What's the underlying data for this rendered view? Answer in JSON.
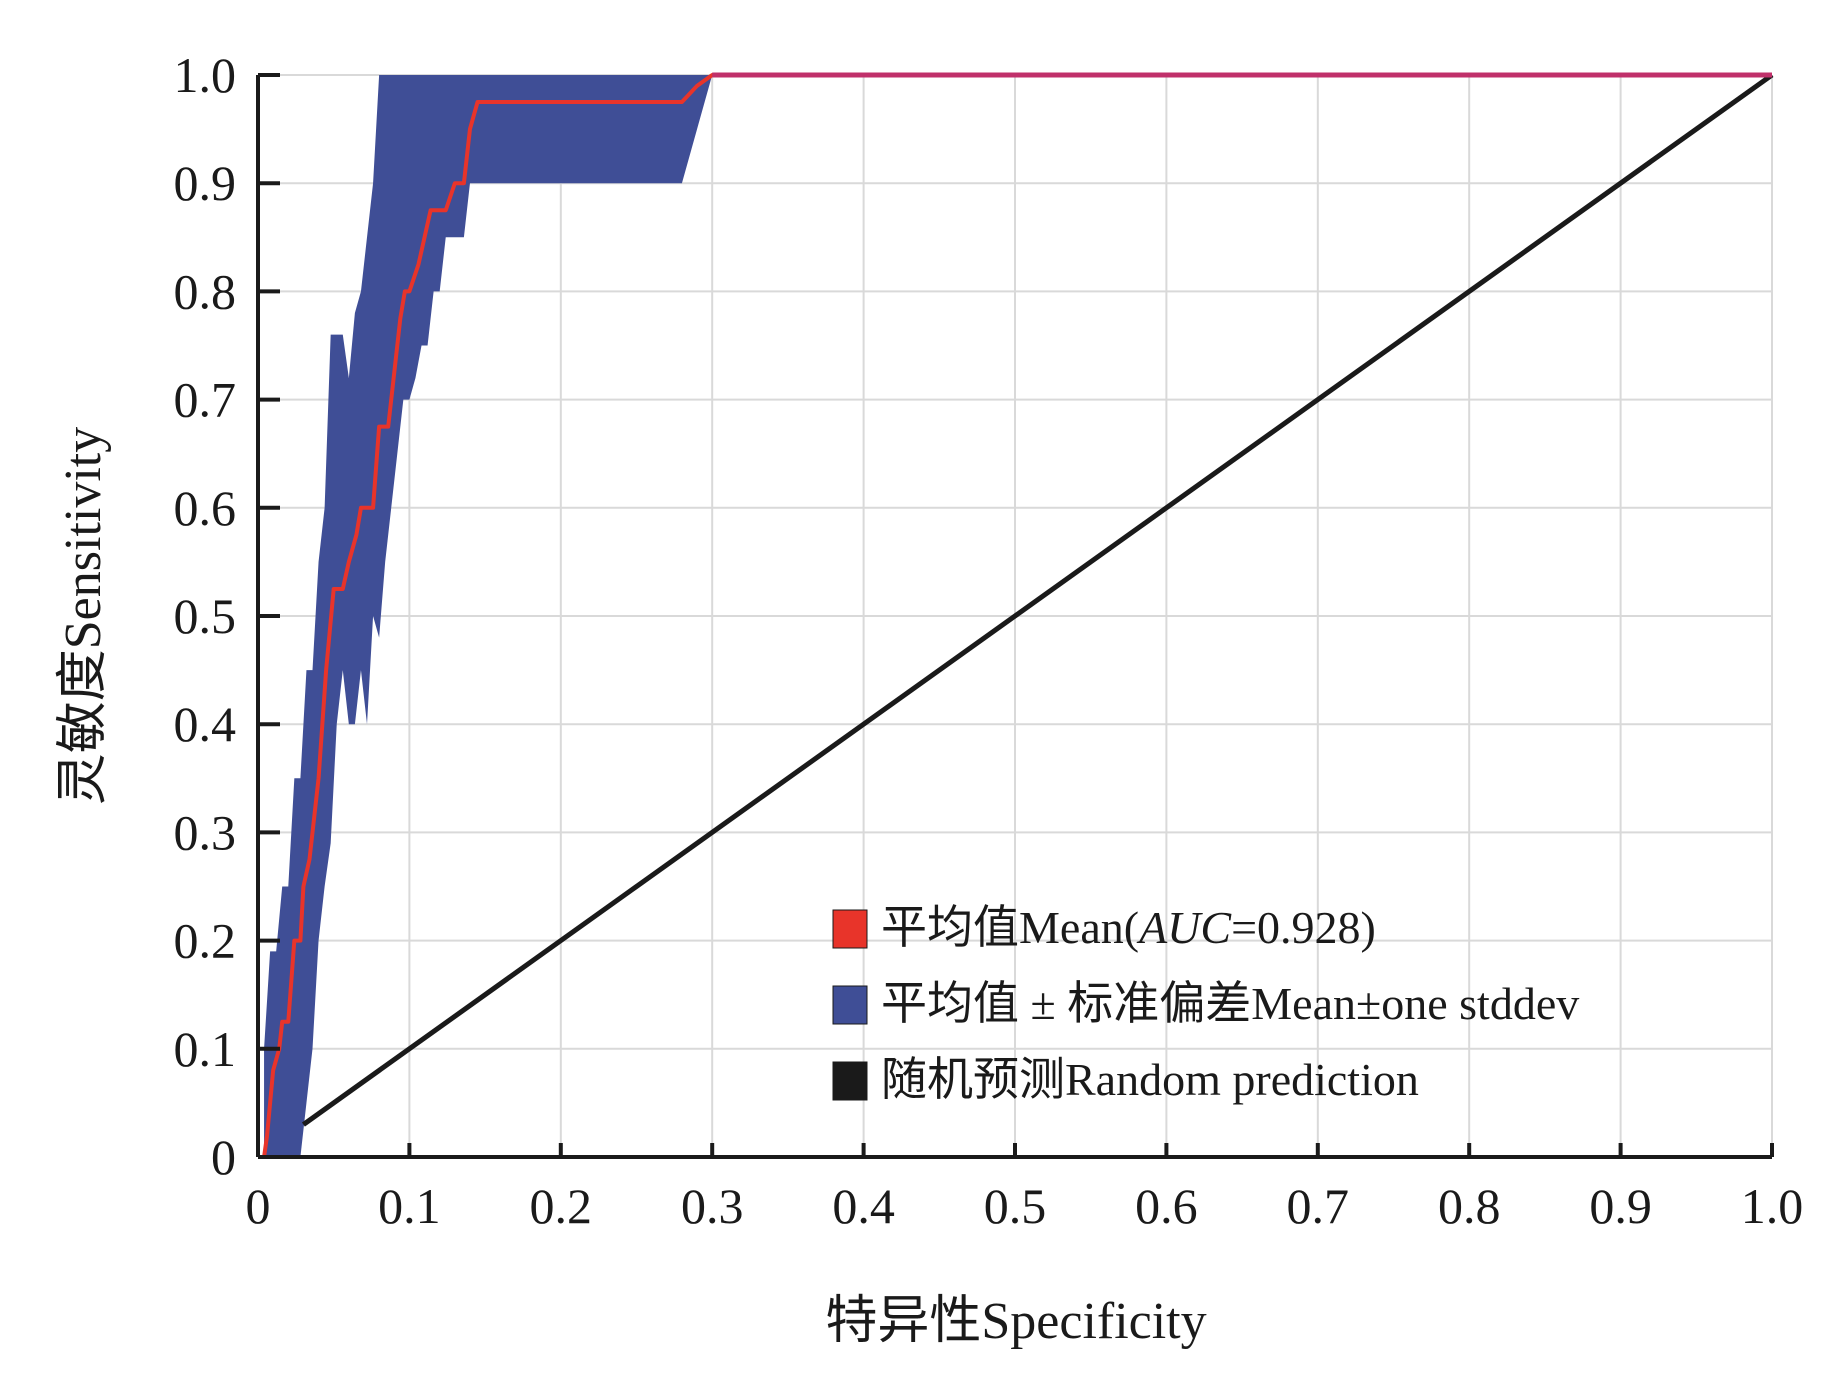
{
  "chart_data": {
    "type": "line",
    "xlabel": "特异性Specificity",
    "ylabel": "灵敏度Sensitivity",
    "xlim": [
      0,
      1.0
    ],
    "ylim": [
      0,
      1.0
    ],
    "xticks": [
      "0",
      "0.1",
      "0.2",
      "0.3",
      "0.4",
      "0.5",
      "0.6",
      "0.7",
      "0.8",
      "0.9",
      "1.0"
    ],
    "yticks": [
      "0",
      "0.1",
      "0.2",
      "0.3",
      "0.4",
      "0.5",
      "0.6",
      "0.7",
      "0.8",
      "0.9",
      "1.0"
    ],
    "grid": true,
    "legend_position": "bottom-right",
    "series": [
      {
        "name": "平均值Mean(AUC=0.928)",
        "color": "#e8342a",
        "x": [
          0.004,
          0.006,
          0.008,
          0.01,
          0.014,
          0.016,
          0.02,
          0.024,
          0.028,
          0.03,
          0.034,
          0.04,
          0.045,
          0.05,
          0.056,
          0.06,
          0.065,
          0.068,
          0.072,
          0.076,
          0.08,
          0.086,
          0.09,
          0.094,
          0.097,
          0.1,
          0.106,
          0.11,
          0.114,
          0.118,
          0.124,
          0.13,
          0.136,
          0.14,
          0.145,
          0.28,
          0.29,
          0.3,
          1.0
        ],
        "y": [
          0.0,
          0.02,
          0.05,
          0.08,
          0.1,
          0.125,
          0.125,
          0.2,
          0.2,
          0.25,
          0.275,
          0.35,
          0.45,
          0.525,
          0.525,
          0.55,
          0.575,
          0.6,
          0.6,
          0.6,
          0.675,
          0.675,
          0.725,
          0.775,
          0.8,
          0.8,
          0.825,
          0.85,
          0.875,
          0.875,
          0.875,
          0.9,
          0.9,
          0.95,
          0.975,
          0.975,
          0.99,
          1.0,
          1.0
        ]
      },
      {
        "name": "平均值 ± 标准偏差Mean±one stddev",
        "color": "#3f4e96",
        "band": true,
        "x": [
          0.004,
          0.008,
          0.012,
          0.016,
          0.02,
          0.024,
          0.028,
          0.032,
          0.036,
          0.04,
          0.044,
          0.048,
          0.052,
          0.056,
          0.06,
          0.064,
          0.068,
          0.072,
          0.076,
          0.08,
          0.084,
          0.088,
          0.092,
          0.096,
          0.1,
          0.104,
          0.108,
          0.112,
          0.116,
          0.12,
          0.124,
          0.128,
          0.132,
          0.136,
          0.14,
          0.144,
          0.28,
          0.29,
          0.3,
          1.0
        ],
        "lower": [
          0.0,
          0.0,
          0.0,
          0.0,
          0.0,
          0.0,
          0.0,
          0.05,
          0.1,
          0.2,
          0.25,
          0.29,
          0.4,
          0.45,
          0.4,
          0.4,
          0.45,
          0.4,
          0.5,
          0.48,
          0.55,
          0.6,
          0.65,
          0.7,
          0.7,
          0.72,
          0.75,
          0.75,
          0.8,
          0.8,
          0.85,
          0.85,
          0.85,
          0.85,
          0.9,
          0.9,
          0.9,
          0.95,
          1.0,
          1.0
        ],
        "upper": [
          0.1,
          0.19,
          0.19,
          0.25,
          0.25,
          0.35,
          0.35,
          0.45,
          0.45,
          0.55,
          0.6,
          0.76,
          0.76,
          0.76,
          0.72,
          0.78,
          0.8,
          0.85,
          0.9,
          1.0,
          1.0,
          1.0,
          1.0,
          1.0,
          1.0,
          1.0,
          1.0,
          1.0,
          1.0,
          1.0,
          1.0,
          1.0,
          1.0,
          1.0,
          1.0,
          1.0,
          1.0,
          1.0,
          1.0,
          1.0
        ]
      },
      {
        "name": "随机预测Random prediction",
        "color": "#1a1a1a",
        "x": [
          0.03,
          1.0
        ],
        "y": [
          0.03,
          1.0
        ]
      }
    ],
    "legend": [
      {
        "label_pre": "平均值Mean(",
        "label_italic": "AUC",
        "label_post": "=0.928)",
        "color": "#e8342a"
      },
      {
        "label_pre": "平均值 ± 标准偏差Mean±one stddev",
        "label_italic": "",
        "label_post": "",
        "color": "#3f4e96"
      },
      {
        "label_pre": "随机预测Random prediction",
        "label_italic": "",
        "label_post": "",
        "color": "#1a1a1a"
      }
    ],
    "colors": {
      "grid": "#d9d9d9",
      "axis": "#1a1a1a",
      "top_line": "#c0306a"
    }
  }
}
